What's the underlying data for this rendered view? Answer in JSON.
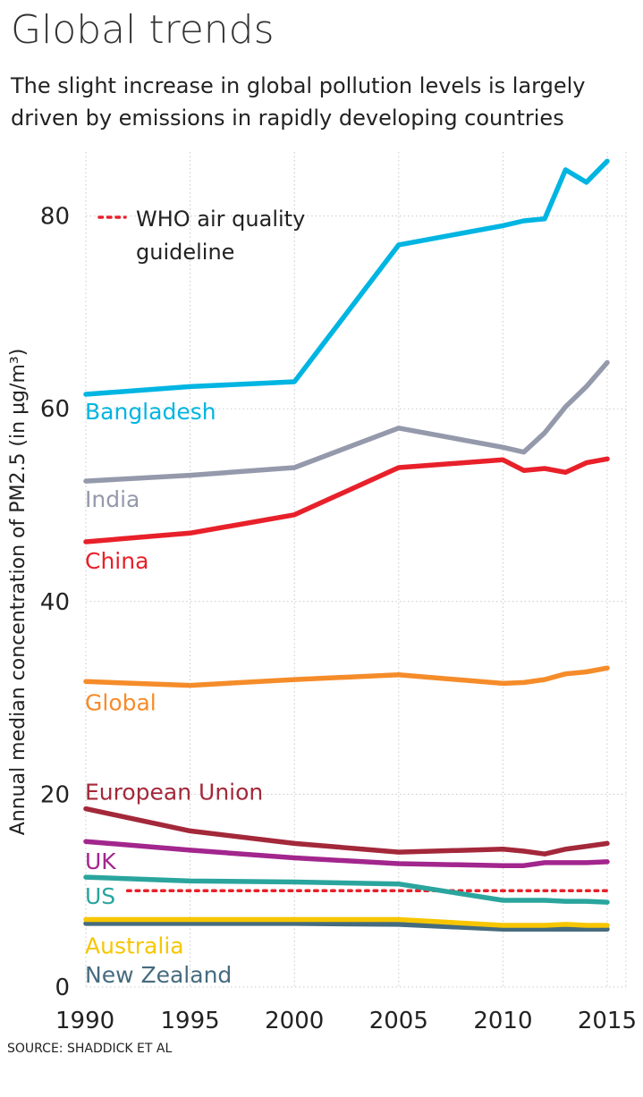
{
  "title": "Global trends",
  "subtitle_lines": [
    "The slight increase in global pollution levels is largely",
    "driven by emissions in rapidly developing countries"
  ],
  "source": "SOURCE: SHADDICK ET AL",
  "chart_data": {
    "type": "line",
    "ylabel": "Annual median concentration of PM2.5 (in µg/m³)",
    "xlabel": "",
    "xlim": [
      1990,
      2015
    ],
    "ylim": [
      0,
      87
    ],
    "x_ticks": [
      1990,
      1995,
      2000,
      2005,
      2010,
      2015
    ],
    "y_ticks": [
      0,
      20,
      40,
      60,
      80
    ],
    "grid": true,
    "legend": {
      "position": "top-left",
      "label_lines": [
        "WHO air quality",
        "guideline"
      ],
      "color": "#e8202a"
    },
    "reference_line": {
      "name": "WHO air quality guideline",
      "y": 10,
      "x_from": 1992,
      "x_to": 2015,
      "style": "dotted",
      "color": "#e8202a"
    },
    "series": [
      {
        "name": "Bangladesh",
        "color": "#00b5e2",
        "label_color": "#00b5e2",
        "x": [
          1990,
          1995,
          2000,
          2005,
          2010,
          2011,
          2012,
          2013,
          2014,
          2015
        ],
        "y": [
          61.5,
          62.3,
          62.8,
          77.0,
          79.0,
          79.5,
          79.7,
          84.8,
          83.5,
          85.7
        ]
      },
      {
        "name": "India",
        "color": "#9499ab",
        "label_color": "#9499ab",
        "x": [
          1990,
          1995,
          2000,
          2005,
          2010,
          2011,
          2012,
          2013,
          2014,
          2015
        ],
        "y": [
          52.5,
          53.1,
          53.9,
          58.0,
          56.0,
          55.5,
          57.5,
          60.2,
          62.3,
          64.8
        ]
      },
      {
        "name": "China",
        "color": "#e8202a",
        "label_color": "#e8202a",
        "x": [
          1990,
          1995,
          2000,
          2005,
          2010,
          2011,
          2012,
          2013,
          2014,
          2015
        ],
        "y": [
          46.2,
          47.1,
          49.0,
          53.9,
          54.7,
          53.6,
          53.8,
          53.4,
          54.4,
          54.8
        ]
      },
      {
        "name": "Global",
        "color": "#f58c2a",
        "label_color": "#f58c2a",
        "x": [
          1990,
          1995,
          2000,
          2005,
          2010,
          2011,
          2012,
          2013,
          2014,
          2015
        ],
        "y": [
          31.7,
          31.3,
          31.9,
          32.4,
          31.5,
          31.6,
          31.9,
          32.5,
          32.7,
          33.1
        ]
      },
      {
        "name": "European Union",
        "color": "#a3283a",
        "label_color": "#a3283a",
        "x": [
          1990,
          1995,
          2000,
          2005,
          2010,
          2011,
          2012,
          2013,
          2014,
          2015
        ],
        "y": [
          18.5,
          16.2,
          14.9,
          14.0,
          14.3,
          14.1,
          13.8,
          14.3,
          14.6,
          14.9
        ]
      },
      {
        "name": "UK",
        "color": "#a2268d",
        "label_color": "#a2268d",
        "x": [
          1990,
          1995,
          2000,
          2005,
          2010,
          2011,
          2012,
          2013,
          2014,
          2015
        ],
        "y": [
          15.1,
          14.2,
          13.4,
          12.8,
          12.6,
          12.6,
          12.9,
          12.9,
          12.9,
          13.0
        ]
      },
      {
        "name": "US",
        "color": "#2aa59e",
        "label_color": "#2aa59e",
        "x": [
          1990,
          1995,
          2000,
          2005,
          2010,
          2011,
          2012,
          2013,
          2014,
          2015
        ],
        "y": [
          11.4,
          11.0,
          10.9,
          10.7,
          9.0,
          9.0,
          9.0,
          8.9,
          8.9,
          8.8
        ]
      },
      {
        "name": "Australia",
        "color": "#f7c600",
        "label_color": "#f7c600",
        "x": [
          1990,
          1995,
          2000,
          2005,
          2010,
          2011,
          2012,
          2013,
          2014,
          2015
        ],
        "y": [
          7.0,
          7.0,
          7.0,
          7.0,
          6.4,
          6.4,
          6.4,
          6.5,
          6.4,
          6.4
        ]
      },
      {
        "name": "New Zealand",
        "color": "#456b7f",
        "label_color": "#456b7f",
        "x": [
          1990,
          1995,
          2000,
          2005,
          2010,
          2011,
          2012,
          2013,
          2014,
          2015
        ],
        "y": [
          6.6,
          6.6,
          6.6,
          6.5,
          6.0,
          6.0,
          6.0,
          6.0,
          6.0,
          6.0
        ]
      }
    ]
  }
}
